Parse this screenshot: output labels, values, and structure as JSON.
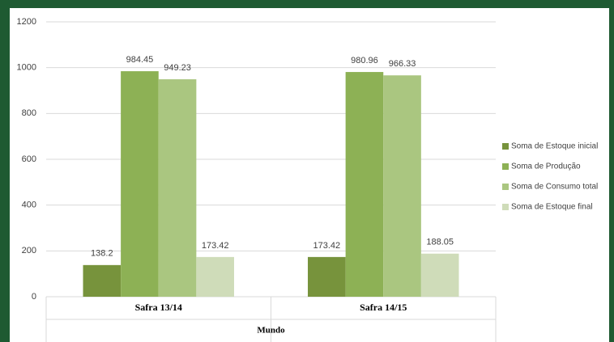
{
  "chart_data": {
    "type": "bar",
    "categories": [
      "Safra 13/14",
      "Safra 14/15"
    ],
    "x_label": "Mundo",
    "series": [
      {
        "name": "Soma de Estoque inicial",
        "color": "#77933c",
        "values": [
          138.2,
          173.42
        ]
      },
      {
        "name": "Soma de Produção",
        "color": "#8db155",
        "values": [
          984.45,
          980.96
        ]
      },
      {
        "name": "Soma de Consumo total",
        "color": "#aac680",
        "values": [
          949.23,
          966.33
        ]
      },
      {
        "name": "Soma de Estoque final",
        "color": "#cfdcb9",
        "values": [
          173.42,
          188.05
        ]
      }
    ],
    "ylim": [
      0,
      1200
    ],
    "yticks": [
      0,
      200,
      400,
      600,
      800,
      1000,
      1200
    ],
    "grid": true,
    "legend": "right"
  }
}
